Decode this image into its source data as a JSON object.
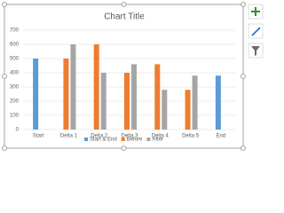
{
  "chart_data": {
    "type": "bar",
    "title": "Chart Title",
    "categories": [
      "Start",
      "Delta 1",
      "Delta 2",
      "Delta 3",
      "Delta 4",
      "Delta 5",
      "End"
    ],
    "series": [
      {
        "name": "Start & End",
        "color": "#5b9bd5",
        "values": [
          500,
          null,
          null,
          null,
          null,
          null,
          380
        ]
      },
      {
        "name": "Before",
        "color": "#ed7d31",
        "values": [
          null,
          500,
          600,
          400,
          460,
          280,
          null
        ]
      },
      {
        "name": "After",
        "color": "#a5a5a5",
        "values": [
          null,
          600,
          400,
          460,
          280,
          380,
          null
        ]
      }
    ],
    "ylim": [
      0,
      700
    ],
    "yticks": [
      0,
      100,
      200,
      300,
      400,
      500,
      600,
      700
    ],
    "grid": true,
    "legend": "bottom"
  }
}
